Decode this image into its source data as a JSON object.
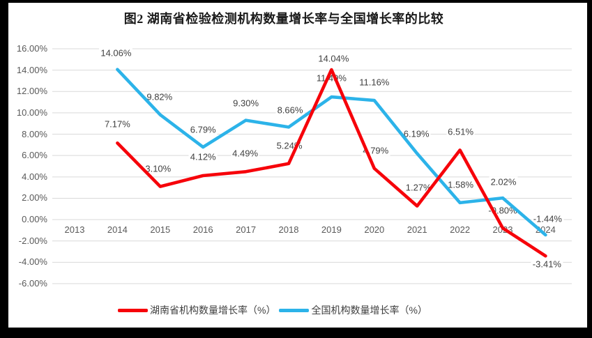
{
  "title": "图2 湖南省检验检测机构数量增长率与全国增长率的比较",
  "chart_data": {
    "type": "line",
    "x_categories": [
      "2013",
      "2014",
      "2015",
      "2016",
      "2017",
      "2018",
      "2019",
      "2020",
      "2021",
      "2022",
      "2023",
      "2024"
    ],
    "series": [
      {
        "name": "湖南省机构数量增长率（%）",
        "color": "#F6020A",
        "values": [
          null,
          7.17,
          3.1,
          4.12,
          4.49,
          5.24,
          14.04,
          4.79,
          1.27,
          6.51,
          -0.8,
          -3.41
        ],
        "label_dx": [
          null,
          0,
          -3,
          0,
          -1,
          1,
          3,
          2,
          2,
          1,
          0,
          2
        ],
        "label_dy": [
          null,
          -27,
          -26,
          -27,
          -26,
          -26,
          -16,
          -26,
          -27,
          -26,
          -25,
          12
        ]
      },
      {
        "name": "全国机构数量增长率（%）",
        "color": "#2CB3E9",
        "values": [
          null,
          14.06,
          9.82,
          6.79,
          9.3,
          8.66,
          11.49,
          11.16,
          6.19,
          1.58,
          2.02,
          -1.44
        ],
        "label_dx": [
          null,
          -2,
          -1,
          0,
          0,
          2,
          0,
          0,
          -1,
          1,
          1,
          3
        ],
        "label_dy": [
          null,
          -24,
          -26,
          -25,
          -25,
          -24,
          -27,
          -26,
          -28,
          -26,
          -23,
          -23
        ]
      }
    ],
    "ylim": [
      -6,
      16
    ],
    "ytick_step": 2,
    "ytick_labels": [
      "16.00%",
      "14.00%",
      "12.00%",
      "10.00%",
      "8.00%",
      "6.00%",
      "4.00%",
      "2.00%",
      "0.00%",
      "-2.00%",
      "-4.00%",
      "-6.00%"
    ],
    "grid": "horizontal-only",
    "legend_position": "bottom",
    "value_label_format": "0.00%"
  },
  "colors": {
    "frame_background": "#000000",
    "canvas_background": "#FFFFFF",
    "grid_line": "#D9D9D9",
    "axis_text": "#595959",
    "data_label_text": "#3F3F3F",
    "title_text": "#1A1A1A"
  }
}
